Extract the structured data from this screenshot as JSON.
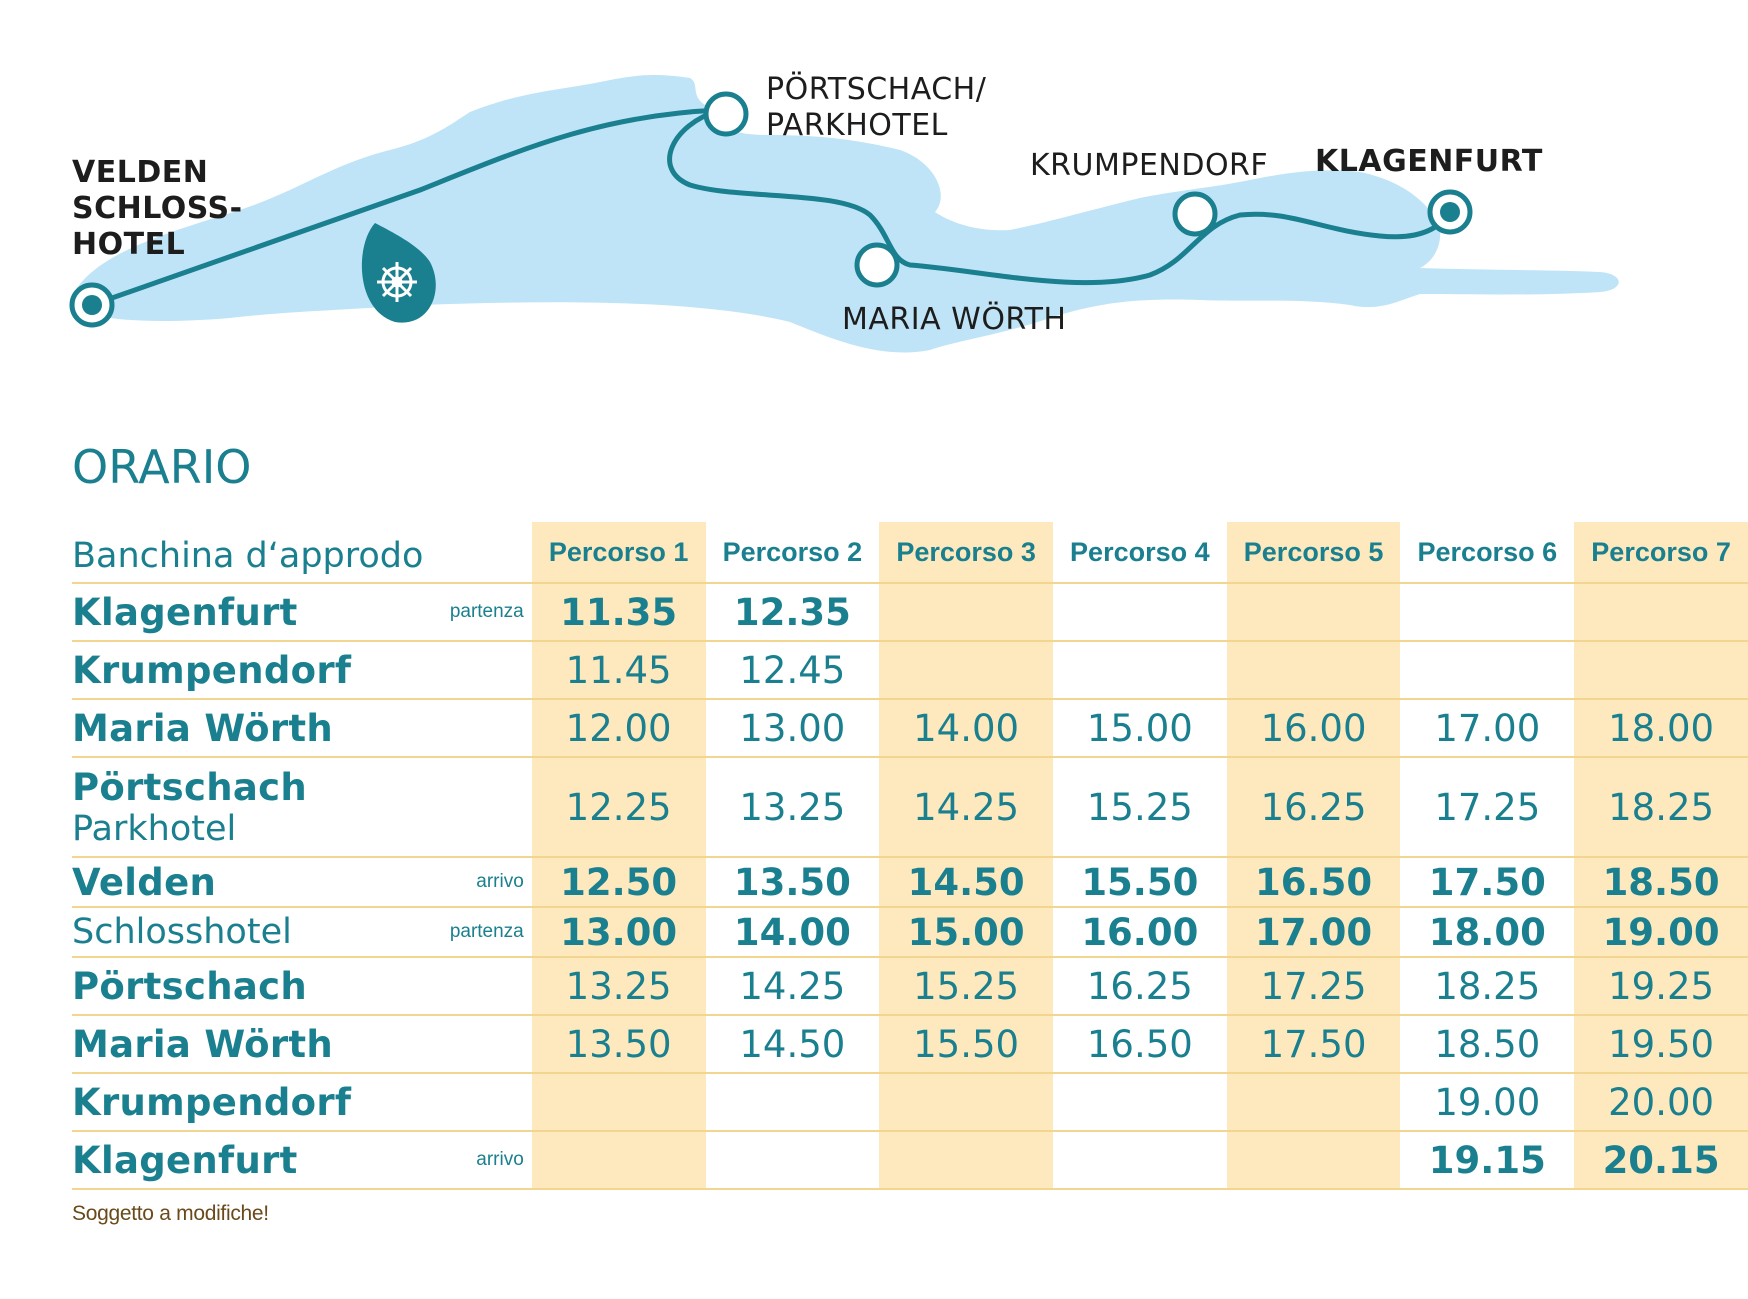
{
  "map": {
    "stops": [
      {
        "id": "velden",
        "label": [
          "VELDEN",
          "SCHLOSS-",
          "HOTEL"
        ],
        "bold": true,
        "terminal": true
      },
      {
        "id": "poertschach",
        "label": [
          "PÖRTSCHACH/",
          "PARKHOTEL"
        ],
        "bold": false,
        "terminal": false
      },
      {
        "id": "maria-woerth",
        "label": [
          "MARIA WÖRTH"
        ],
        "bold": false,
        "terminal": false
      },
      {
        "id": "krumpendorf",
        "label": [
          "KRUMPENDORF"
        ],
        "bold": false,
        "terminal": false
      },
      {
        "id": "klagenfurt",
        "label": [
          "KLAGENFURT"
        ],
        "bold": true,
        "terminal": true
      }
    ],
    "icon": "ships-wheel-icon",
    "colors": {
      "lake": "#bfe4f7",
      "route": "#1a7f8e",
      "station": "#ffffff"
    }
  },
  "title": "ORARIO",
  "table": {
    "stop_header": "Banchina d‘approdo",
    "routes": [
      "Percorso 1",
      "Percorso 2",
      "Percorso 3",
      "Percorso 4",
      "Percorso 5",
      "Percorso 6",
      "Percorso 7"
    ],
    "rows": [
      {
        "name": "Klagenfurt",
        "sub": "",
        "note": "partenza",
        "bold": true,
        "times": [
          "11.35",
          "12.35",
          "",
          "",
          "",
          "",
          ""
        ]
      },
      {
        "name": "Krumpendorf",
        "sub": "",
        "note": "",
        "bold": false,
        "times": [
          "11.45",
          "12.45",
          "",
          "",
          "",
          "",
          ""
        ]
      },
      {
        "name": "Maria Wörth",
        "sub": "",
        "note": "",
        "bold": false,
        "times": [
          "12.00",
          "13.00",
          "14.00",
          "15.00",
          "16.00",
          "17.00",
          "18.00"
        ]
      },
      {
        "name": "Pörtschach",
        "sub": "Parkhotel",
        "note": "",
        "bold": false,
        "times": [
          "12.25",
          "13.25",
          "14.25",
          "15.25",
          "16.25",
          "17.25",
          "18.25"
        ]
      },
      {
        "name": "Velden",
        "sub": "",
        "note": "arrivo",
        "bold": true,
        "times": [
          "12.50",
          "13.50",
          "14.50",
          "15.50",
          "16.50",
          "17.50",
          "18.50"
        ]
      },
      {
        "name": "",
        "sub": "Schlosshotel",
        "note": "partenza",
        "bold": true,
        "times": [
          "13.00",
          "14.00",
          "15.00",
          "16.00",
          "17.00",
          "18.00",
          "19.00"
        ]
      },
      {
        "name": "Pörtschach",
        "sub": "",
        "note": "",
        "bold": false,
        "times": [
          "13.25",
          "14.25",
          "15.25",
          "16.25",
          "17.25",
          "18.25",
          "19.25"
        ]
      },
      {
        "name": "Maria Wörth",
        "sub": "",
        "note": "",
        "bold": false,
        "times": [
          "13.50",
          "14.50",
          "15.50",
          "16.50",
          "17.50",
          "18.50",
          "19.50"
        ]
      },
      {
        "name": "Krumpendorf",
        "sub": "",
        "note": "",
        "bold": false,
        "times": [
          "",
          "",
          "",
          "",
          "",
          "19.00",
          "20.00"
        ]
      },
      {
        "name": "Klagenfurt",
        "sub": "",
        "note": "arrivo",
        "bold": true,
        "times": [
          "",
          "",
          "",
          "",
          "",
          "19.15",
          "20.15"
        ]
      }
    ],
    "colors": {
      "shade": "#fde9bd",
      "rule": "#f2d58f",
      "text": "#1a7f8e"
    }
  },
  "footnote": "Soggetto a modifiche!"
}
